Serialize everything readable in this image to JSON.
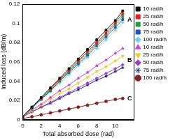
{
  "chart_data": {
    "type": "line",
    "x_label": "Total absorbed dose (rad)",
    "y_label": "Induced loss (dB/m)",
    "x": [
      0,
      1,
      2,
      3,
      4,
      5,
      6,
      7,
      8,
      9,
      10,
      10.8
    ],
    "xlim": [
      0,
      12
    ],
    "xticks": [
      0,
      2,
      4,
      6,
      8,
      10
    ],
    "ylim": [
      0,
      0.12
    ],
    "yticks": [
      0,
      0.02,
      0.04,
      0.06,
      0.08,
      0.1,
      0.12
    ],
    "grid": false,
    "legend": "top-right",
    "annotations": [
      {
        "text": "A",
        "x": 11.3,
        "y": 0.104
      },
      {
        "text": "B",
        "x": 11.3,
        "y": 0.062
      },
      {
        "text": "C",
        "x": 11.3,
        "y": 0.022
      }
    ],
    "series": [
      {
        "name": "10 rad/h",
        "color": "#111111",
        "marker": "square",
        "values": [
          0.003,
          0.013,
          0.023,
          0.033,
          0.043,
          0.053,
          0.063,
          0.073,
          0.083,
          0.093,
          0.103,
          0.113
        ]
      },
      {
        "name": "25 rad/h",
        "color": "#e02020",
        "marker": "square",
        "values": [
          0.003,
          0.013,
          0.022,
          0.032,
          0.042,
          0.051,
          0.061,
          0.071,
          0.08,
          0.09,
          0.101,
          0.11
        ]
      },
      {
        "name": "50 rad/h",
        "color": "#1f9a3a",
        "marker": "square",
        "values": [
          0.003,
          0.012,
          0.022,
          0.031,
          0.041,
          0.05,
          0.06,
          0.069,
          0.079,
          0.088,
          0.099,
          0.107
        ]
      },
      {
        "name": "75 rad/h",
        "color": "#1f4fd0",
        "marker": "square",
        "values": [
          0.003,
          0.012,
          0.021,
          0.03,
          0.04,
          0.049,
          0.058,
          0.067,
          0.077,
          0.086,
          0.096,
          0.104
        ]
      },
      {
        "name": "100 rad/h",
        "color": "#6fd3e8",
        "marker": "diamond",
        "values": [
          0.003,
          0.012,
          0.021,
          0.029,
          0.038,
          0.047,
          0.056,
          0.065,
          0.074,
          0.083,
          0.093,
          0.101
        ]
      },
      {
        "name": "10 rad/h",
        "color": "#d040d0",
        "marker": "triangle",
        "values": [
          0.003,
          0.01,
          0.016,
          0.023,
          0.03,
          0.036,
          0.043,
          0.049,
          0.056,
          0.062,
          0.069,
          0.074
        ]
      },
      {
        "name": "25 rad/h",
        "color": "#e0d020",
        "marker": "triangle-down",
        "values": [
          0.003,
          0.009,
          0.015,
          0.021,
          0.027,
          0.032,
          0.038,
          0.044,
          0.05,
          0.055,
          0.061,
          0.066
        ]
      },
      {
        "name": "50 rad/h",
        "color": "#9a40c8",
        "marker": "diamond",
        "values": [
          0.003,
          0.008,
          0.013,
          0.018,
          0.023,
          0.028,
          0.033,
          0.038,
          0.043,
          0.048,
          0.053,
          0.057
        ]
      },
      {
        "name": "75 rad/h",
        "color": "#1a2a80",
        "marker": "star",
        "values": [
          0.003,
          0.008,
          0.013,
          0.017,
          0.022,
          0.027,
          0.031,
          0.036,
          0.041,
          0.045,
          0.05,
          0.054
        ]
      },
      {
        "name": "100 rad/h",
        "color": "#8b2020",
        "marker": "circle",
        "values": [
          0.001,
          0.003,
          0.005,
          0.007,
          0.009,
          0.011,
          0.013,
          0.015,
          0.017,
          0.019,
          0.021,
          0.022
        ]
      }
    ]
  }
}
